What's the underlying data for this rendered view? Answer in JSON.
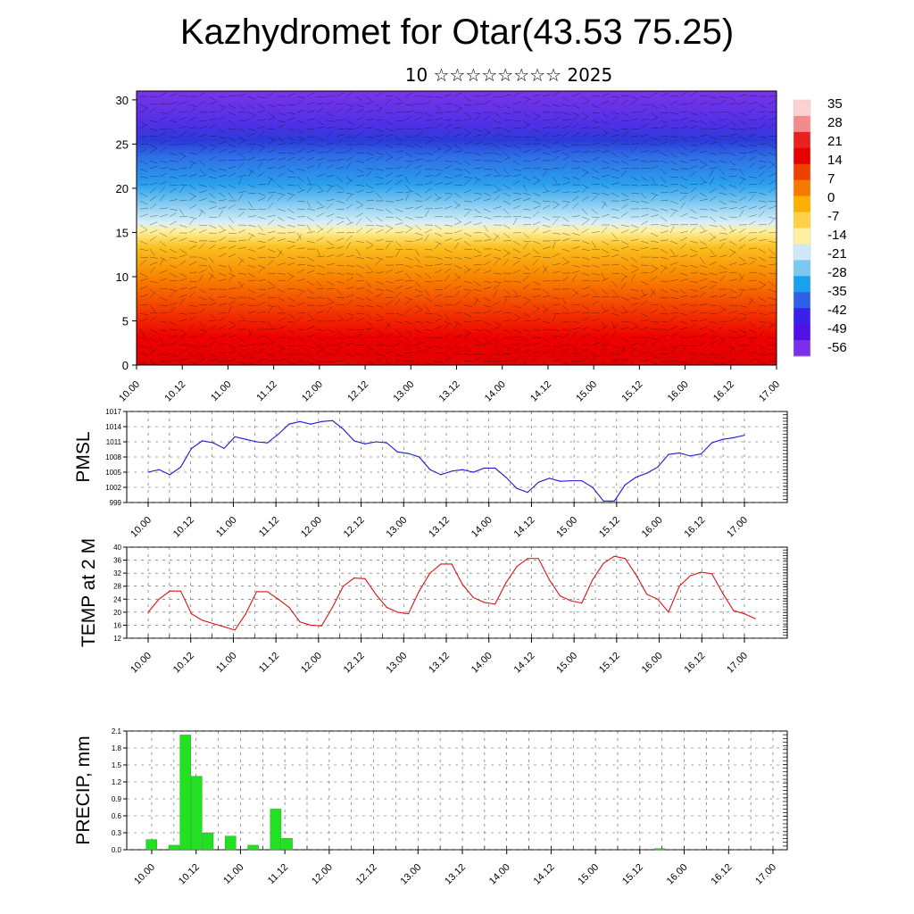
{
  "title": "Kazhydromet for Otar(43.53 75.25)",
  "subtitle": "10 ☆☆☆☆☆☆☆☆ 2025",
  "colors": {
    "pmsl_line": "#1a1acc",
    "temp_line": "#dd1111",
    "precip_bar": "#22e022",
    "precip_edge": "#119911"
  },
  "time_ticks": [
    "10.00",
    "10.12",
    "11.00",
    "11.12",
    "12.00",
    "12.12",
    "13.00",
    "13.12",
    "14.00",
    "14.12",
    "15.00",
    "15.12",
    "16.00",
    "16.12",
    "17.00"
  ],
  "chart_data": [
    {
      "type": "heatmap",
      "name": "cross-section",
      "x_ticks": [
        "10.00",
        "10.12",
        "11.00",
        "11.12",
        "12.00",
        "12.12",
        "13.00",
        "13.12",
        "14.00",
        "14.12",
        "15.00",
        "15.12",
        "16.00",
        "16.12",
        "17.00"
      ],
      "y_ticks": [
        0,
        5,
        10,
        15,
        20,
        25,
        30
      ],
      "ylim": [
        0,
        31
      ],
      "colorbar_labels": [
        "35",
        "28",
        "21",
        "14",
        "7",
        "0",
        "-7",
        "-14",
        "-21",
        "-28",
        "-35",
        "-42",
        "-49",
        "-56"
      ],
      "colorbar_colors": [
        "#fbd2d2",
        "#f28c8c",
        "#e82020",
        "#e80000",
        "#f04000",
        "#f77a00",
        "#fbb000",
        "#ffd24a",
        "#fff0a0",
        "#cfe8f5",
        "#7cc8f0",
        "#1aa0ee",
        "#2f60e8",
        "#3a20e8",
        "#5010e8",
        "#7a30e8"
      ]
    },
    {
      "type": "line",
      "ylabel": "PMSL",
      "x_ticks": [
        "10.00",
        "10.12",
        "11.00",
        "11.12",
        "12.00",
        "12.12",
        "13.00",
        "13.12",
        "14.00",
        "14.12",
        "15.00",
        "15.12",
        "16.00",
        "16.12",
        "17.00"
      ],
      "ylim": [
        999,
        1017
      ],
      "y_ticks": [
        "1017",
        "1014",
        "1011",
        "1008",
        "1005",
        "1002",
        "999"
      ],
      "values": [
        1005,
        1005.5,
        1004.5,
        1006,
        1009.7,
        1011.2,
        1010.8,
        1009.7,
        1012,
        1011.5,
        1011,
        1010.8,
        1012.5,
        1014.5,
        1015,
        1014.5,
        1015,
        1015.2,
        1013.5,
        1011.2,
        1010.6,
        1011,
        1010.8,
        1009,
        1008.7,
        1008,
        1005.5,
        1004.5,
        1005.2,
        1005.5,
        1005,
        1005.8,
        1005.8,
        1004,
        1001.8,
        1001,
        1003,
        1003.8,
        1003.2,
        1003.3,
        1003.3,
        1002,
        999.3,
        999.3,
        1002.5,
        1004,
        1004.8,
        1006,
        1008.5,
        1008.8,
        1008.2,
        1008.6,
        1010.8,
        1011.5,
        1011.8,
        1012.3
      ]
    },
    {
      "type": "line",
      "ylabel": "TEMP at 2 M",
      "x_ticks": [
        "10.00",
        "10.12",
        "11.00",
        "11.12",
        "12.00",
        "12.12",
        "13.00",
        "13.12",
        "14.00",
        "14.12",
        "15.00",
        "15.12",
        "16.00",
        "16.12",
        "17.00"
      ],
      "ylim": [
        12,
        40
      ],
      "y_ticks": [
        "40",
        "36",
        "32",
        "28",
        "24",
        "20",
        "16",
        "12"
      ],
      "values": [
        20,
        24,
        26.5,
        26.5,
        19.5,
        17.5,
        16.5,
        15.5,
        14.5,
        19.5,
        26.3,
        26.3,
        24,
        21.5,
        17,
        16,
        15.8,
        21.5,
        28,
        30.5,
        30.3,
        25.5,
        21.5,
        20,
        19.5,
        26.5,
        32,
        34.8,
        34.8,
        28.5,
        24.5,
        23,
        22.5,
        29,
        34,
        36.5,
        36.5,
        30,
        25,
        23.5,
        22.8,
        30,
        35,
        37.2,
        36.5,
        31.5,
        25.5,
        24,
        20,
        28,
        31.2,
        32.3,
        31.8,
        25.8,
        20.5,
        19.5,
        18
      ]
    },
    {
      "type": "bar",
      "ylabel": "PRECIP, mm",
      "x_ticks": [
        "10.00",
        "10.12",
        "11.00",
        "11.12",
        "12.00",
        "12.12",
        "13.00",
        "13.12",
        "14.00",
        "14.12",
        "15.00",
        "15.12",
        "16.00",
        "16.12",
        "17.00"
      ],
      "ylim": [
        0,
        2.1
      ],
      "y_ticks": [
        "2.1",
        "1.8",
        "1.5",
        "1.2",
        "0.9",
        "0.6",
        "0.3",
        "0.0"
      ],
      "values": [
        0.18,
        0,
        0.08,
        2.03,
        1.3,
        0.3,
        0,
        0.24,
        0,
        0.08,
        0,
        0.72,
        0.2,
        0,
        0,
        0,
        0,
        0,
        0,
        0,
        0,
        0,
        0,
        0,
        0,
        0,
        0,
        0,
        0,
        0,
        0,
        0,
        0,
        0,
        0,
        0,
        0,
        0,
        0,
        0,
        0,
        0,
        0,
        0,
        0,
        0.02,
        0,
        0,
        0,
        0,
        0,
        0,
        0,
        0,
        0,
        0,
        0
      ]
    }
  ]
}
